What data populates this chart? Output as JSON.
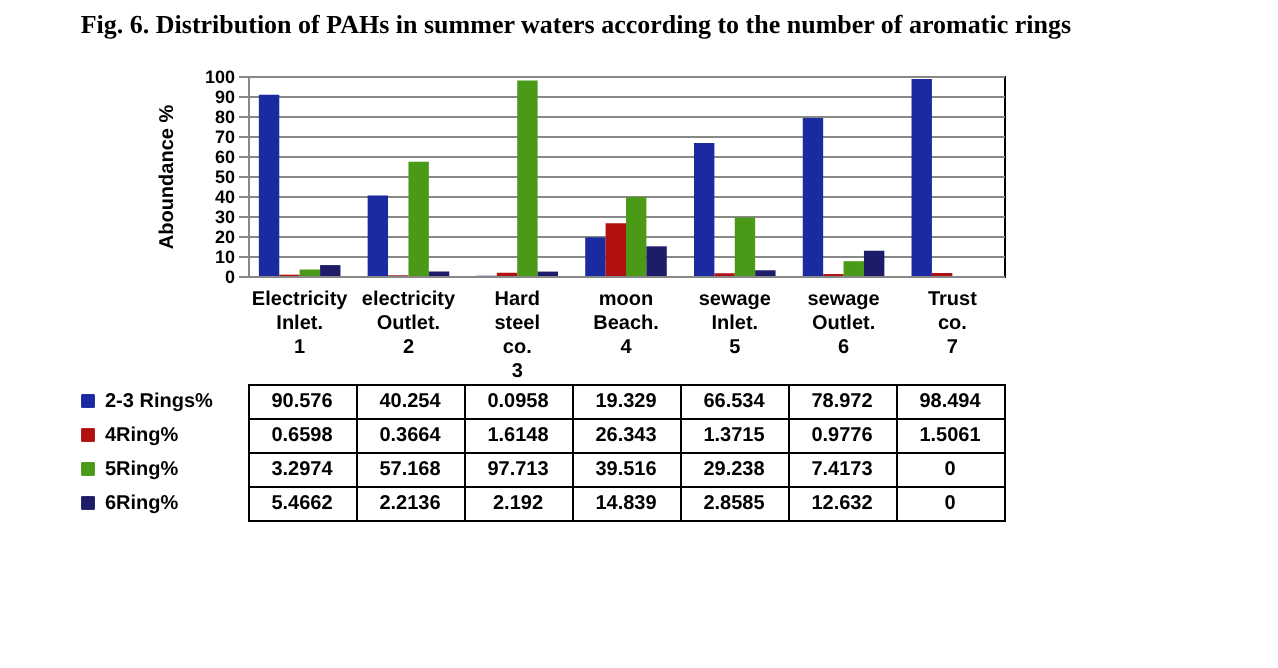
{
  "chart_data": {
    "type": "bar",
    "title": "Fig. 6. Distribution of PAHs in summer waters according to the number of aromatic rings",
    "ylabel": "Aboundance %",
    "categories": [
      "Electricity Inlet.\n1",
      "electricity Outlet.\n2",
      "Hard steel co.\n3",
      "moon Beach.\n4",
      "sewage Inlet.\n5",
      "sewage Outlet.\n6",
      "Trust co.\n7"
    ],
    "series": [
      {
        "name": "2-3 Rings%",
        "color": "#1a2aa0",
        "values": [
          90.576,
          40.254,
          0.0958,
          19.329,
          66.534,
          78.972,
          98.494
        ]
      },
      {
        "name": "4Ring%",
        "color": "#b01010",
        "values": [
          0.6598,
          0.3664,
          1.6148,
          26.343,
          1.3715,
          0.9776,
          1.5061
        ]
      },
      {
        "name": "5Ring%",
        "color": "#4a9a18",
        "values": [
          3.2974,
          57.168,
          97.713,
          39.516,
          29.238,
          7.4173,
          0
        ]
      },
      {
        "name": "6Ring%",
        "color": "#1c1c68",
        "values": [
          5.4662,
          2.2136,
          2.192,
          14.839,
          2.8585,
          12.632,
          0
        ]
      }
    ],
    "ylim": [
      0,
      100
    ],
    "yticks": [
      0,
      10,
      20,
      30,
      40,
      50,
      60,
      70,
      80,
      90,
      100
    ],
    "grid": "y",
    "data_labels": true,
    "legend": "bottom"
  }
}
